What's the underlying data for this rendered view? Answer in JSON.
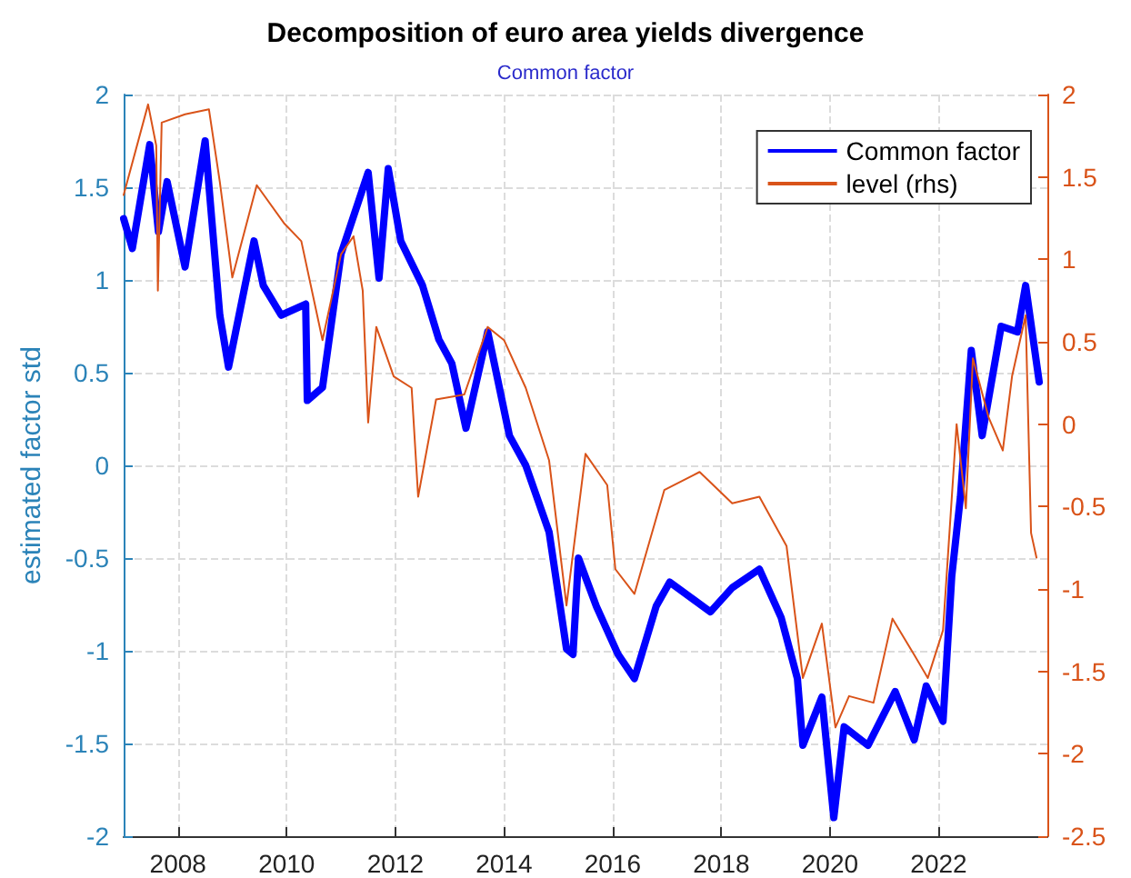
{
  "chart_data": {
    "type": "line",
    "title": "Decomposition of euro area yields divergence",
    "subtitle": "Common factor",
    "ylabel": "estimated factor std",
    "xlim": [
      2007,
      2024
    ],
    "xticks": [
      2008,
      2010,
      2012,
      2014,
      2016,
      2018,
      2020,
      2022
    ],
    "ylim": [
      -2,
      2
    ],
    "yticks": [
      -2,
      -1.5,
      -1,
      -0.5,
      0,
      0.5,
      1,
      1.5,
      2
    ],
    "y2lim": [
      -2.5,
      2
    ],
    "y2ticks": [
      -2.5,
      -2,
      -1.5,
      -1,
      -0.5,
      0,
      0.5,
      1,
      1.5,
      2
    ],
    "grid": true,
    "legend": "top right",
    "marker": "none",
    "line_style": "solid",
    "series": [
      {
        "name": "Common factor",
        "color": "#0000ff",
        "x": [
          2007.0,
          2007.16,
          2007.48,
          2007.64,
          2007.8,
          2008.13,
          2008.5,
          2008.77,
          2008.93,
          2009.4,
          2009.57,
          2009.9,
          2010.35,
          2010.38,
          2010.66,
          2011.0,
          2011.33,
          2011.5,
          2011.7,
          2011.87,
          2012.1,
          2012.5,
          2012.8,
          2013.04,
          2013.3,
          2013.7,
          2014.1,
          2014.4,
          2014.83,
          2015.15,
          2015.27,
          2015.37,
          2015.7,
          2016.1,
          2016.4,
          2016.8,
          2017.05,
          2017.8,
          2018.2,
          2018.7,
          2019.1,
          2019.4,
          2019.5,
          2019.85,
          2020.07,
          2020.26,
          2020.7,
          2021.2,
          2021.55,
          2021.77,
          2022.08,
          2022.24,
          2022.4,
          2022.6,
          2022.8,
          2023.15,
          2023.45,
          2023.6,
          2023.85
        ],
        "values": [
          1.33,
          1.17,
          1.73,
          1.26,
          1.53,
          1.07,
          1.75,
          0.81,
          0.53,
          1.21,
          0.97,
          0.81,
          0.87,
          0.35,
          0.42,
          1.14,
          1.43,
          1.58,
          1.01,
          1.6,
          1.21,
          0.97,
          0.68,
          0.55,
          0.2,
          0.72,
          0.16,
          0,
          -0.36,
          -0.99,
          -1.02,
          -0.5,
          -0.76,
          -1.02,
          -1.15,
          -0.76,
          -0.63,
          -0.79,
          -0.66,
          -0.56,
          -0.82,
          -1.15,
          -1.51,
          -1.25,
          -1.9,
          -1.41,
          -1.51,
          -1.22,
          -1.48,
          -1.19,
          -1.38,
          -0.6,
          -0.17,
          0.62,
          0.16,
          0.75,
          0.72,
          0.97,
          0.45
        ]
      },
      {
        "name": "level (rhs)",
        "color": "#d95319",
        "axis": "y2",
        "x": [
          2007.0,
          2007.45,
          2007.6,
          2007.63,
          2007.7,
          2008.13,
          2008.57,
          2008.77,
          2009.0,
          2009.45,
          2009.95,
          2010.27,
          2010.66,
          2011.0,
          2011.23,
          2011.4,
          2011.5,
          2011.65,
          2011.97,
          2012.3,
          2012.42,
          2012.75,
          2013.27,
          2013.7,
          2014.0,
          2014.4,
          2014.83,
          2015.15,
          2015.5,
          2015.9,
          2016.05,
          2016.4,
          2016.95,
          2017.6,
          2018.2,
          2018.7,
          2019.2,
          2019.5,
          2019.85,
          2020.1,
          2020.35,
          2020.8,
          2021.15,
          2021.55,
          2021.8,
          2022.08,
          2022.33,
          2022.5,
          2022.63,
          2022.92,
          2023.18,
          2023.35,
          2023.6,
          2023.7,
          2023.8
        ],
        "values": [
          1.39,
          1.94,
          1.69,
          0.81,
          1.83,
          1.88,
          1.91,
          1.47,
          0.89,
          1.45,
          1.22,
          1.11,
          0.51,
          1.03,
          1.14,
          0.81,
          0.01,
          0.59,
          0.29,
          0.22,
          -0.44,
          0.15,
          0.18,
          0.59,
          0.51,
          0.22,
          -0.22,
          -1.1,
          -0.18,
          -0.37,
          -0.88,
          -1.03,
          -0.4,
          -0.29,
          -0.48,
          -0.44,
          -0.74,
          -1.54,
          -1.21,
          -1.84,
          -1.65,
          -1.69,
          -1.18,
          -1.4,
          -1.54,
          -1.25,
          0.0,
          -0.51,
          0.4,
          0.04,
          -0.16,
          0.29,
          0.66,
          -0.66,
          -0.81
        ]
      }
    ]
  }
}
